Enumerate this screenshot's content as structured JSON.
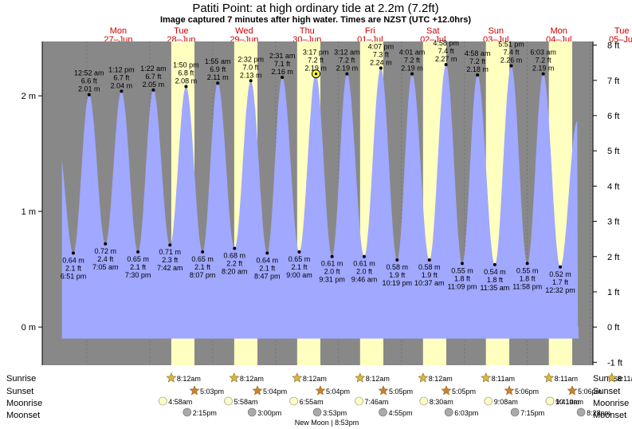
{
  "title": "Patiti Point: at high  ordinary tide at 2.2m (7.2ft)",
  "subtitle": "Image captured 7 minutes after high water. Times are NZST (UTC +12.0hrs)",
  "colors": {
    "night": "#888888",
    "day": "#ffffc0",
    "water": "#a0a8ff",
    "day_label": "#cc0000",
    "sun_star": "#d8b840",
    "sunset_star": "#d08030",
    "moon_rise": "#ffffc0",
    "moon_set": "#aaaaaa"
  },
  "days": [
    {
      "dow": "Mon",
      "date": "27–Jun"
    },
    {
      "dow": "Tue",
      "date": "28–Jun"
    },
    {
      "dow": "Wed",
      "date": "29–Jun"
    },
    {
      "dow": "Thu",
      "date": "30–Jun"
    },
    {
      "dow": "Fri",
      "date": "01–Jul"
    },
    {
      "dow": "Sat",
      "date": "02–Jul"
    },
    {
      "dow": "Sun",
      "date": "03–Jul"
    },
    {
      "dow": "Mon",
      "date": "04–Jul"
    },
    {
      "dow": "Tue",
      "date": "05–Jul"
    }
  ],
  "row_labels": {
    "sunrise": "Sunrise",
    "sunset": "Sunset",
    "moonrise": "Moonrise",
    "moonset": "Moonset"
  },
  "sunrise": [
    "8:12am",
    "8:12am",
    "8:12am",
    "8:12am",
    "8:12am",
    "8:11am",
    "8:11am",
    "8:11am"
  ],
  "sunset": [
    "5:03pm",
    "5:04pm",
    "5:04pm",
    "5:05pm",
    "5:05pm",
    "5:06pm",
    "5:06pm"
  ],
  "moonrise": [
    "4:58am",
    "5:58am",
    "6:55am",
    "7:46am",
    "8:30am",
    "9:08am",
    "9:41am",
    "10:10am"
  ],
  "moonset": [
    "2:15pm",
    "3:00pm",
    "3:53pm",
    "4:55pm",
    "6:03pm",
    "7:15pm",
    "8:28pm"
  ],
  "moon_phase": {
    "name": "New Moon",
    "time": "8:53pm"
  },
  "chart_data": {
    "type": "area",
    "title": "Patiti Point: at high  ordinary tide at 2.2m (7.2ft)",
    "y_left_unit": "m",
    "y_right_unit": "ft",
    "y_left_ticks": [
      0,
      1,
      2
    ],
    "y_right_ticks": [
      -1,
      0,
      1,
      2,
      3,
      4,
      5,
      6,
      7,
      8
    ],
    "ylim_m": [
      -0.33,
      2.47
    ],
    "x_range_hours": [
      -17,
      193
    ],
    "x_note": "hours from 00:00 Mon 27-Jun NZST",
    "current": {
      "hour": 87.4,
      "height_m": 2.19
    },
    "sun": [
      {
        "rise": 32.2,
        "set": 41.05
      },
      {
        "rise": 56.2,
        "set": 65.07
      },
      {
        "rise": 80.2,
        "set": 89.07
      },
      {
        "rise": 104.2,
        "set": 113.08
      },
      {
        "rise": 128.2,
        "set": 137.08
      },
      {
        "rise": 152.18,
        "set": 161.1
      },
      {
        "rise": 176.18,
        "set": 185.1
      }
    ],
    "tides": [
      {
        "kind": "low",
        "hour": -5.15,
        "m": 0.64,
        "ft": 2.1,
        "time": "6:51 pm"
      },
      {
        "kind": "high",
        "hour": 0.87,
        "m": 2.01,
        "ft": 6.6,
        "time": "12:52 am"
      },
      {
        "kind": "low",
        "hour": 7.08,
        "m": 0.72,
        "ft": 2.4,
        "time": "7:05 am"
      },
      {
        "kind": "high",
        "hour": 13.2,
        "m": 2.04,
        "ft": 6.7,
        "time": "1:12 pm"
      },
      {
        "kind": "low",
        "hour": 19.5,
        "m": 0.65,
        "ft": 2.1,
        "time": "7:30 pm"
      },
      {
        "kind": "high",
        "hour": 25.37,
        "m": 2.05,
        "ft": 6.7,
        "time": "1:22 am"
      },
      {
        "kind": "low",
        "hour": 31.7,
        "m": 0.71,
        "ft": 2.3,
        "time": "7:42 am"
      },
      {
        "kind": "high",
        "hour": 37.83,
        "m": 2.08,
        "ft": 6.8,
        "time": "1:50 pm"
      },
      {
        "kind": "low",
        "hour": 44.12,
        "m": 0.65,
        "ft": 2.1,
        "time": "8:07 pm"
      },
      {
        "kind": "high",
        "hour": 49.92,
        "m": 2.11,
        "ft": 6.9,
        "time": "1:55 am"
      },
      {
        "kind": "low",
        "hour": 56.33,
        "m": 0.68,
        "ft": 2.2,
        "time": "8:20 am"
      },
      {
        "kind": "high",
        "hour": 62.53,
        "m": 2.13,
        "ft": 7.0,
        "time": "2:32 pm"
      },
      {
        "kind": "low",
        "hour": 68.78,
        "m": 0.64,
        "ft": 2.1,
        "time": "8:47 pm"
      },
      {
        "kind": "high",
        "hour": 74.52,
        "m": 2.16,
        "ft": 7.1,
        "time": "2:31 am"
      },
      {
        "kind": "low",
        "hour": 81.0,
        "m": 0.65,
        "ft": 2.1,
        "time": "9:00 am"
      },
      {
        "kind": "high",
        "hour": 87.28,
        "m": 2.19,
        "ft": 7.2,
        "time": "3:17 pm"
      },
      {
        "kind": "low",
        "hour": 93.52,
        "m": 0.61,
        "ft": 2.0,
        "time": "9:31 pm"
      },
      {
        "kind": "high",
        "hour": 99.2,
        "m": 2.19,
        "ft": 7.2,
        "time": "3:12 am"
      },
      {
        "kind": "low",
        "hour": 105.77,
        "m": 0.61,
        "ft": 2.0,
        "time": "9:46 am"
      },
      {
        "kind": "high",
        "hour": 112.12,
        "m": 2.24,
        "ft": 7.3,
        "time": "4:07 pm"
      },
      {
        "kind": "low",
        "hour": 118.32,
        "m": 0.58,
        "ft": 1.9,
        "time": "10:19 pm"
      },
      {
        "kind": "high",
        "hour": 124.02,
        "m": 2.19,
        "ft": 7.2,
        "time": "4:01 am"
      },
      {
        "kind": "low",
        "hour": 130.62,
        "m": 0.58,
        "ft": 1.9,
        "time": "10:37 am"
      },
      {
        "kind": "high",
        "hour": 136.97,
        "m": 2.27,
        "ft": 7.4,
        "time": "4:58 pm"
      },
      {
        "kind": "low",
        "hour": 143.15,
        "m": 0.55,
        "ft": 1.8,
        "time": "11:09 pm"
      },
      {
        "kind": "high",
        "hour": 148.97,
        "m": 2.18,
        "ft": 7.2,
        "time": "4:58 am"
      },
      {
        "kind": "low",
        "hour": 155.58,
        "m": 0.54,
        "ft": 1.8,
        "time": "11:35 am"
      },
      {
        "kind": "high",
        "hour": 161.85,
        "m": 2.26,
        "ft": 7.4,
        "time": "5:51 pm"
      },
      {
        "kind": "low",
        "hour": 167.97,
        "m": 0.55,
        "ft": 1.8,
        "time": "11:58 pm"
      },
      {
        "kind": "high",
        "hour": 174.05,
        "m": 2.19,
        "ft": 7.2,
        "time": "6:03 am"
      },
      {
        "kind": "low",
        "hour": 180.53,
        "m": 0.52,
        "ft": 1.7,
        "time": "12:32 pm"
      }
    ]
  }
}
